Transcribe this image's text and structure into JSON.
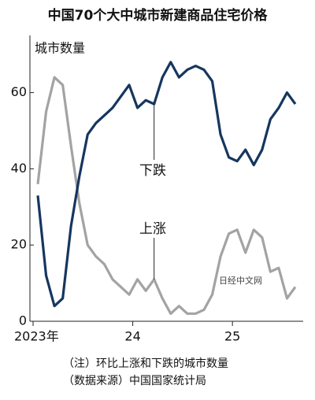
{
  "chart_data": {
    "type": "line",
    "title": "中国70个大中城市新建商品住宅价格",
    "ylabel": "城市数量",
    "categories": [
      "2023年",
      null,
      null,
      null,
      null,
      null,
      null,
      null,
      null,
      null,
      null,
      null,
      "24",
      null,
      null,
      null,
      null,
      null,
      null,
      null,
      null,
      null,
      null,
      null,
      "25",
      null,
      null,
      null,
      null,
      null,
      null,
      null
    ],
    "series": [
      {
        "name": "下跌",
        "color": "#16365f",
        "values": [
          33,
          12,
          4,
          6,
          25,
          38,
          49,
          52,
          54,
          56,
          59,
          62,
          56,
          58,
          57,
          64,
          68,
          64,
          66,
          67,
          66,
          63,
          49,
          43,
          42,
          45,
          41,
          45,
          53,
          56,
          60,
          57
        ]
      },
      {
        "name": "上涨",
        "color": "#a3a3a3",
        "values": [
          36,
          55,
          64,
          62,
          46,
          31,
          20,
          17,
          15,
          11,
          9,
          7,
          11,
          8,
          11,
          6,
          2,
          4,
          2,
          2,
          3,
          7,
          17,
          23,
          24,
          18,
          24,
          22,
          13,
          14,
          6,
          9
        ]
      }
    ],
    "ylim": [
      0,
      75
    ],
    "yticks": [
      0,
      20,
      40,
      60
    ],
    "watermark": "日经中文网",
    "notes": [
      "（注）环比上涨和下跌的城市数量",
      "（数据来源）中国国家统计局"
    ]
  }
}
